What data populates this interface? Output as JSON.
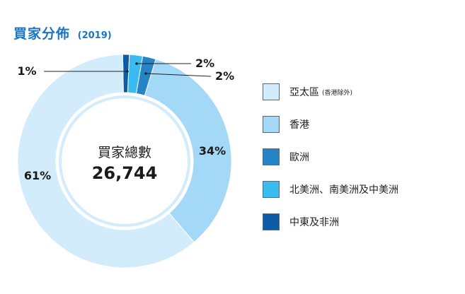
{
  "header": {
    "title": "買家分佈",
    "year": "(2019)"
  },
  "chart_data": {
    "type": "pie",
    "variant": "donut",
    "center_label": "買家總數",
    "center_value": "26,744",
    "slices": [
      {
        "name": "亞太區",
        "note": "(香港除外)",
        "value": 61,
        "label": "61%",
        "color": "#d3ecfb"
      },
      {
        "name": "香港",
        "value": 34,
        "label": "34%",
        "color": "#a3d8f7"
      },
      {
        "name": "歐洲",
        "value": 2,
        "label": "2%",
        "color": "#2484c6"
      },
      {
        "name": "北美洲、南美洲及中美洲",
        "value": 2,
        "label": "2%",
        "color": "#3bbcf0"
      },
      {
        "name": "中東及非洲",
        "value": 1,
        "label": "1%",
        "color": "#0d5aa7"
      }
    ],
    "legend_position": "right"
  }
}
